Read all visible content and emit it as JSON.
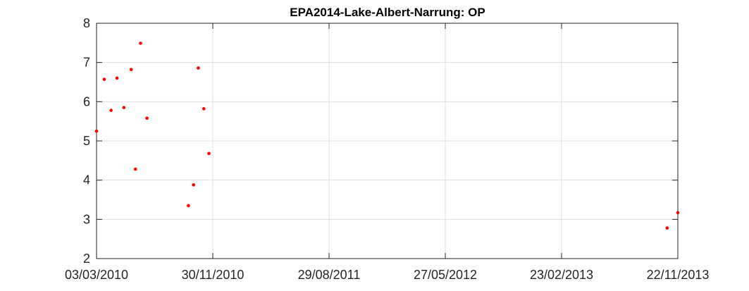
{
  "chart_data": {
    "type": "scatter",
    "title": "EPA2014-Lake-Albert-Narrung: OP",
    "xlabel": "",
    "ylabel": "",
    "xlim": [
      "03/03/2010",
      "22/11/2013"
    ],
    "ylim": [
      2,
      8
    ],
    "xticks": [
      "03/03/2010",
      "30/11/2010",
      "29/08/2011",
      "27/05/2012",
      "23/02/2013",
      "22/11/2013"
    ],
    "yticks": [
      2,
      3,
      4,
      5,
      6,
      7,
      8
    ],
    "grid": true,
    "marker_color": "#ff0000",
    "series": [
      {
        "x": [
          "03/03/2010",
          "21/03/2010",
          "06/04/2010",
          "20/04/2010",
          "06/05/2010",
          "23/05/2010",
          "02/06/2010",
          "14/06/2010",
          "29/06/2010",
          "04/10/2010",
          "16/10/2010",
          "27/10/2010",
          "09/11/2010",
          "21/11/2010",
          "28/10/2013",
          "22/11/2013"
        ],
        "y": [
          5.25,
          6.57,
          5.78,
          6.6,
          5.85,
          6.82,
          4.28,
          7.49,
          5.58,
          3.35,
          3.88,
          6.86,
          5.82,
          4.68,
          2.78,
          3.17
        ]
      }
    ]
  }
}
